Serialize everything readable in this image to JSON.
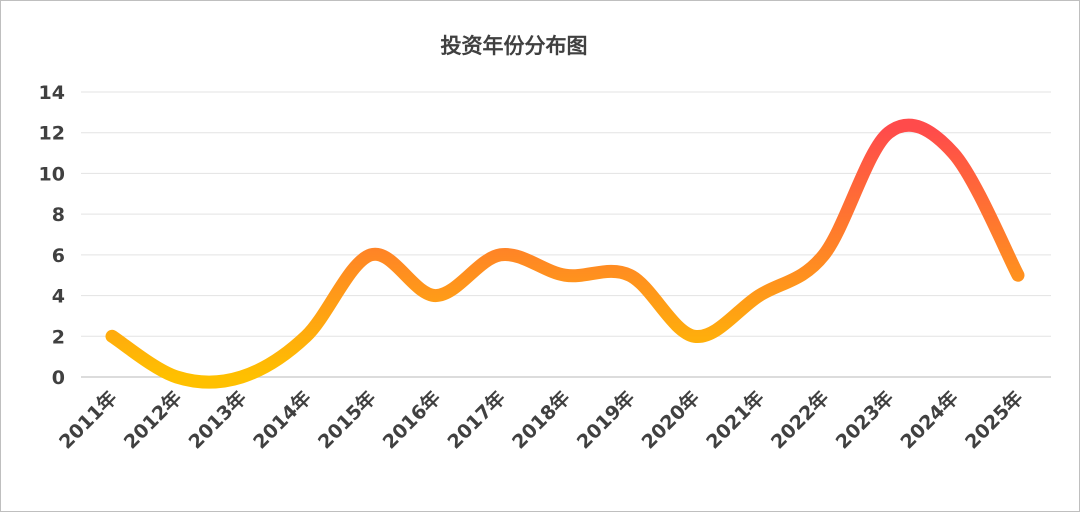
{
  "chart_data": {
    "type": "line",
    "title": "投资年份分布图",
    "xlabel": "",
    "ylabel": "",
    "categories": [
      "2011年",
      "2012年",
      "2013年",
      "2014年",
      "2015年",
      "2016年",
      "2017年",
      "2018年",
      "2019年",
      "2020年",
      "2021年",
      "2022年",
      "2023年",
      "2024年",
      "2025年"
    ],
    "series": [
      {
        "values": [
          2,
          0,
          0,
          2,
          6,
          4,
          6,
          5,
          5,
          2,
          4,
          6,
          12,
          11,
          5
        ]
      }
    ],
    "ylim": [
      0,
      14
    ],
    "yticks": [
      0,
      2,
      4,
      6,
      8,
      10,
      12,
      14
    ],
    "grid": true,
    "legend": "none",
    "smooth": true,
    "line_gradient": {
      "low": "#ffc000",
      "high": "#ff4b4b"
    },
    "text_color": "#404040"
  }
}
